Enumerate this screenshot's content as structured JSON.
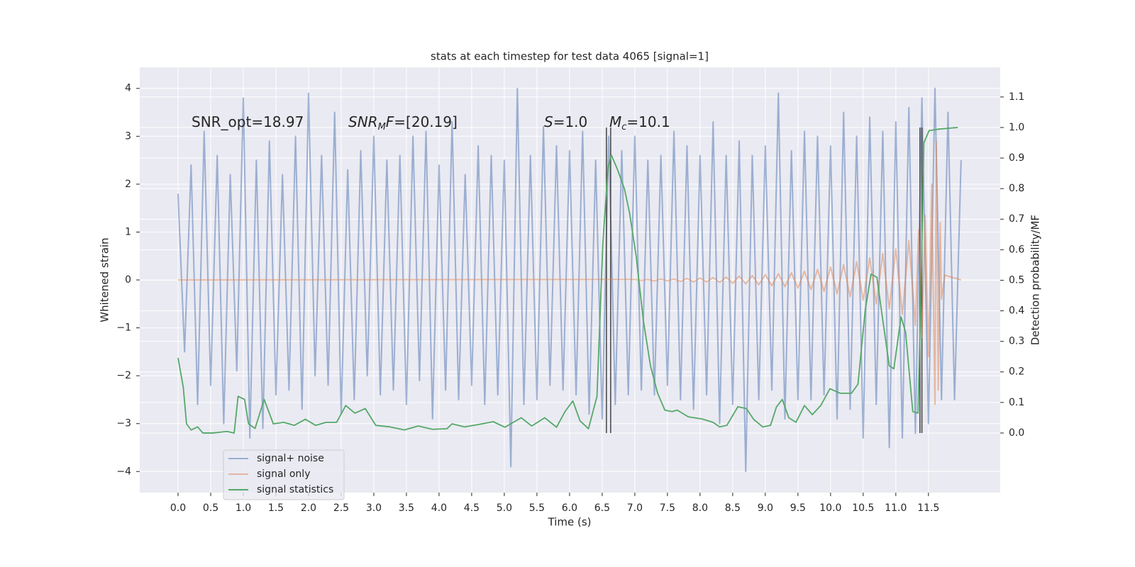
{
  "chart_data": {
    "type": "line",
    "title": "stats at each timestep for test data 4065 [signal=1]",
    "xlabel": "Time (s)",
    "ylabel": "Whitened strain",
    "y2label": "Detection probability/MF",
    "xlim": [
      -0.587,
      12.6
    ],
    "ylim": [
      -4.44,
      4.44
    ],
    "y2lim": [
      -0.195,
      1.197
    ],
    "xticks": [
      {
        "value": 0,
        "label": "0.0"
      },
      {
        "value": 0.5,
        "label": "0.5"
      },
      {
        "value": 1,
        "label": "1.0"
      },
      {
        "value": 1.5,
        "label": "1.5"
      },
      {
        "value": 2,
        "label": "2.0"
      },
      {
        "value": 2.5,
        "label": "2.5"
      },
      {
        "value": 3,
        "label": "3.0"
      },
      {
        "value": 3.5,
        "label": "3.5"
      },
      {
        "value": 4,
        "label": "4.0"
      },
      {
        "value": 4.5,
        "label": "4.5"
      },
      {
        "value": 5,
        "label": "5.0"
      },
      {
        "value": 5.5,
        "label": "5.5"
      },
      {
        "value": 6,
        "label": "6.0"
      },
      {
        "value": 6.5,
        "label": "6.5"
      },
      {
        "value": 7,
        "label": "7.0"
      },
      {
        "value": 7.5,
        "label": "7.5"
      },
      {
        "value": 8,
        "label": "8.0"
      },
      {
        "value": 8.5,
        "label": "8.5"
      },
      {
        "value": 9,
        "label": "9.0"
      },
      {
        "value": 9.5,
        "label": "9.5"
      },
      {
        "value": 10,
        "label": "10.0"
      },
      {
        "value": 10.5,
        "label": "10.5"
      },
      {
        "value": 11,
        "label": "11.0"
      },
      {
        "value": 11.5,
        "label": "11.5"
      }
    ],
    "yticks": [
      {
        "value": -4,
        "label": "−4"
      },
      {
        "value": -3,
        "label": "−3"
      },
      {
        "value": -2,
        "label": "−2"
      },
      {
        "value": -1,
        "label": "−1"
      },
      0,
      1,
      2,
      3,
      4
    ],
    "y2ticks": [
      {
        "value": 0,
        "label": "0.0"
      },
      {
        "value": 0.1,
        "label": "0.1"
      },
      {
        "value": 0.2,
        "label": "0.2"
      },
      {
        "value": 0.3,
        "label": "0.3"
      },
      {
        "value": 0.4,
        "label": "0.4"
      },
      {
        "value": 0.5,
        "label": "0.5"
      },
      {
        "value": 0.6,
        "label": "0.6"
      },
      {
        "value": 0.7,
        "label": "0.7"
      },
      {
        "value": 0.8,
        "label": "0.8"
      },
      {
        "value": 0.9,
        "label": "0.9"
      },
      {
        "value": 1,
        "label": "1.0"
      },
      {
        "value": 1.1,
        "label": "1.1"
      }
    ],
    "grid": true,
    "legend": "lower left",
    "series": [
      {
        "name": "signal+ noise",
        "color": "#4c72b0",
        "alpha": 0.5,
        "x": [
          0.0,
          0.1,
          0.2,
          0.3,
          0.4,
          0.5,
          0.6,
          0.7,
          0.8,
          0.9,
          1.0,
          1.1,
          1.2,
          1.3,
          1.4,
          1.5,
          1.6,
          1.7,
          1.8,
          1.9,
          2.0,
          2.1,
          2.2,
          2.3,
          2.4,
          2.5,
          2.6,
          2.7,
          2.8,
          2.9,
          3.0,
          3.1,
          3.2,
          3.3,
          3.4,
          3.5,
          3.6,
          3.7,
          3.8,
          3.9,
          4.0,
          4.1,
          4.2,
          4.3,
          4.4,
          4.5,
          4.6,
          4.7,
          4.8,
          4.9,
          5.0,
          5.1,
          5.2,
          5.3,
          5.4,
          5.5,
          5.6,
          5.7,
          5.8,
          5.9,
          6.0,
          6.1,
          6.2,
          6.3,
          6.4,
          6.5,
          6.6,
          6.7,
          6.8,
          6.9,
          7.0,
          7.1,
          7.2,
          7.3,
          7.4,
          7.5,
          7.6,
          7.7,
          7.8,
          7.9,
          8.0,
          8.1,
          8.2,
          8.3,
          8.4,
          8.5,
          8.6,
          8.7,
          8.8,
          8.9,
          9.0,
          9.1,
          9.2,
          9.3,
          9.4,
          9.5,
          9.6,
          9.7,
          9.8,
          9.9,
          10.0,
          10.1,
          10.2,
          10.3,
          10.4,
          10.5,
          10.6,
          10.7,
          10.8,
          10.9,
          11.0,
          11.1,
          11.2,
          11.3,
          11.4,
          11.5,
          11.6,
          11.7,
          11.8,
          11.9,
          12.0
        ],
        "values": [
          1.8,
          -1.5,
          2.4,
          -2.6,
          3.1,
          -2.2,
          2.6,
          -3.0,
          2.2,
          -1.9,
          3.8,
          -3.3,
          2.5,
          -3.1,
          2.9,
          -2.4,
          2.2,
          -2.3,
          3.0,
          -2.7,
          3.9,
          -2.0,
          2.6,
          -2.2,
          3.5,
          -2.8,
          2.3,
          -2.5,
          2.7,
          -2.0,
          3.0,
          -2.4,
          2.5,
          -2.3,
          2.6,
          -2.6,
          3.0,
          -2.1,
          3.1,
          -2.9,
          2.4,
          -2.3,
          3.3,
          -2.5,
          2.2,
          -2.2,
          2.8,
          -2.6,
          2.6,
          -2.4,
          2.5,
          -3.9,
          4.0,
          -2.6,
          2.6,
          -2.5,
          3.2,
          -2.2,
          2.8,
          -2.3,
          2.7,
          -2.4,
          3.1,
          -2.8,
          2.5,
          -2.9,
          3.0,
          -2.6,
          2.7,
          -2.4,
          3.0,
          -2.3,
          2.5,
          -2.4,
          2.6,
          -2.2,
          3.1,
          -2.5,
          2.8,
          -2.7,
          2.6,
          -2.4,
          3.3,
          -3.0,
          2.6,
          -2.6,
          2.9,
          -4.0,
          2.6,
          -2.5,
          2.8,
          -2.3,
          3.9,
          -2.9,
          2.7,
          -2.5,
          3.1,
          -2.5,
          3.0,
          -2.4,
          2.8,
          -2.9,
          3.5,
          -2.7,
          3.0,
          -3.3,
          3.4,
          -2.6,
          3.1,
          -3.5,
          3.3,
          -3.3,
          3.6,
          -3.2,
          3.8,
          -3.0,
          4.0,
          -2.5,
          3.5,
          -2.5,
          2.5
        ]
      },
      {
        "name": "signal only",
        "color": "#dd8452",
        "alpha": 0.5,
        "x": [
          0.0,
          7.0,
          7.1,
          7.2,
          7.3,
          7.4,
          7.5,
          7.6,
          7.7,
          7.8,
          7.9,
          8.0,
          8.1,
          8.2,
          8.3,
          8.4,
          8.5,
          8.6,
          8.7,
          8.8,
          8.9,
          9.0,
          9.1,
          9.2,
          9.3,
          9.4,
          9.5,
          9.6,
          9.7,
          9.8,
          9.9,
          10.0,
          10.1,
          10.2,
          10.3,
          10.4,
          10.5,
          10.6,
          10.7,
          10.8,
          10.9,
          11.0,
          11.1,
          11.2,
          11.3,
          11.35,
          11.4,
          11.45,
          11.5,
          11.55,
          11.6,
          11.62,
          11.65,
          11.68,
          11.7,
          11.75,
          12.0
        ],
        "values": [
          0,
          0.01,
          -0.01,
          0.01,
          -0.02,
          0.02,
          -0.02,
          0.02,
          -0.03,
          0.03,
          -0.04,
          0.04,
          -0.04,
          0.05,
          -0.05,
          0.06,
          -0.07,
          0.08,
          -0.08,
          0.09,
          -0.1,
          0.11,
          -0.12,
          0.13,
          -0.14,
          0.15,
          -0.17,
          0.18,
          -0.2,
          0.22,
          -0.24,
          0.27,
          -0.29,
          0.32,
          -0.35,
          0.38,
          -0.42,
          0.46,
          -0.5,
          0.55,
          -0.6,
          0.65,
          -0.72,
          0.82,
          -0.95,
          1.05,
          -1.2,
          1.35,
          -1.6,
          2.0,
          -2.6,
          2.9,
          -2.3,
          1.2,
          -0.4,
          0.1,
          0
        ]
      },
      {
        "name": "signal statistics",
        "color": "#55a868",
        "axis": "y2",
        "x": [
          0,
          0.08,
          0.13,
          0.2,
          0.3,
          0.38,
          0.53,
          0.75,
          0.86,
          0.92,
          1.02,
          1.08,
          1.18,
          1.32,
          1.46,
          1.62,
          1.78,
          1.95,
          2.11,
          2.27,
          2.43,
          2.57,
          2.71,
          2.87,
          3.03,
          3.25,
          3.47,
          3.68,
          3.9,
          4.12,
          4.2,
          4.39,
          4.61,
          4.83,
          5.01,
          5.26,
          5.42,
          5.62,
          5.8,
          5.93,
          6.05,
          6.16,
          6.29,
          6.42,
          6.51,
          6.59,
          6.64,
          6.73,
          6.84,
          6.92,
          7.02,
          7.13,
          7.24,
          7.35,
          7.46,
          7.57,
          7.65,
          7.82,
          8.03,
          8.2,
          8.3,
          8.41,
          8.58,
          8.71,
          8.82,
          8.96,
          9.08,
          9.17,
          9.26,
          9.36,
          9.47,
          9.6,
          9.72,
          9.85,
          9.99,
          10.15,
          10.32,
          10.42,
          10.53,
          10.62,
          10.71,
          10.8,
          10.9,
          10.97,
          11.08,
          11.15,
          11.26,
          11.34,
          11.38,
          11.43,
          11.51,
          11.67,
          11.95
        ],
        "values": [
          0.246,
          0.15,
          0.03,
          0.01,
          0.02,
          0.0,
          0.0,
          0.005,
          0.0,
          0.12,
          0.11,
          0.03,
          0.015,
          0.11,
          0.03,
          0.035,
          0.025,
          0.045,
          0.025,
          0.035,
          0.035,
          0.09,
          0.065,
          0.08,
          0.025,
          0.02,
          0.01,
          0.023,
          0.012,
          0.014,
          0.03,
          0.02,
          0.028,
          0.037,
          0.019,
          0.05,
          0.023,
          0.05,
          0.019,
          0.07,
          0.105,
          0.04,
          0.014,
          0.12,
          0.62,
          0.87,
          0.91,
          0.865,
          0.8,
          0.72,
          0.58,
          0.37,
          0.22,
          0.13,
          0.075,
          0.07,
          0.075,
          0.053,
          0.046,
          0.035,
          0.02,
          0.025,
          0.086,
          0.08,
          0.045,
          0.02,
          0.025,
          0.085,
          0.11,
          0.05,
          0.035,
          0.09,
          0.06,
          0.09,
          0.145,
          0.13,
          0.13,
          0.16,
          0.4,
          0.52,
          0.51,
          0.37,
          0.22,
          0.21,
          0.38,
          0.33,
          0.07,
          0.065,
          0.4,
          0.95,
          0.99,
          0.995,
          1.0
        ]
      }
    ],
    "vlines": {
      "x": [
        6.565,
        6.63,
        11.37,
        11.4
      ],
      "ymin": 0,
      "ymax": 1,
      "axis": "y2",
      "color": "#444444"
    },
    "annotations": [
      {
        "parts": [
          {
            "text": "SNR_opt=18.97",
            "style": "normal"
          }
        ]
      },
      {
        "parts": [
          {
            "text": "SNR",
            "style": "italic"
          },
          {
            "text": "M",
            "style": "sub"
          },
          {
            "text": "F",
            "style": "italic"
          },
          {
            "text": "=[20.19]",
            "style": "normal"
          }
        ]
      },
      {
        "parts": [
          {
            "text": "S",
            "style": "italic"
          },
          {
            "text": "=1.0",
            "style": "normal"
          }
        ]
      },
      {
        "parts": [
          {
            "text": "M",
            "style": "italic"
          },
          {
            "text": "c",
            "style": "sub"
          },
          {
            "text": "=10.1",
            "style": "normal"
          }
        ]
      }
    ]
  }
}
